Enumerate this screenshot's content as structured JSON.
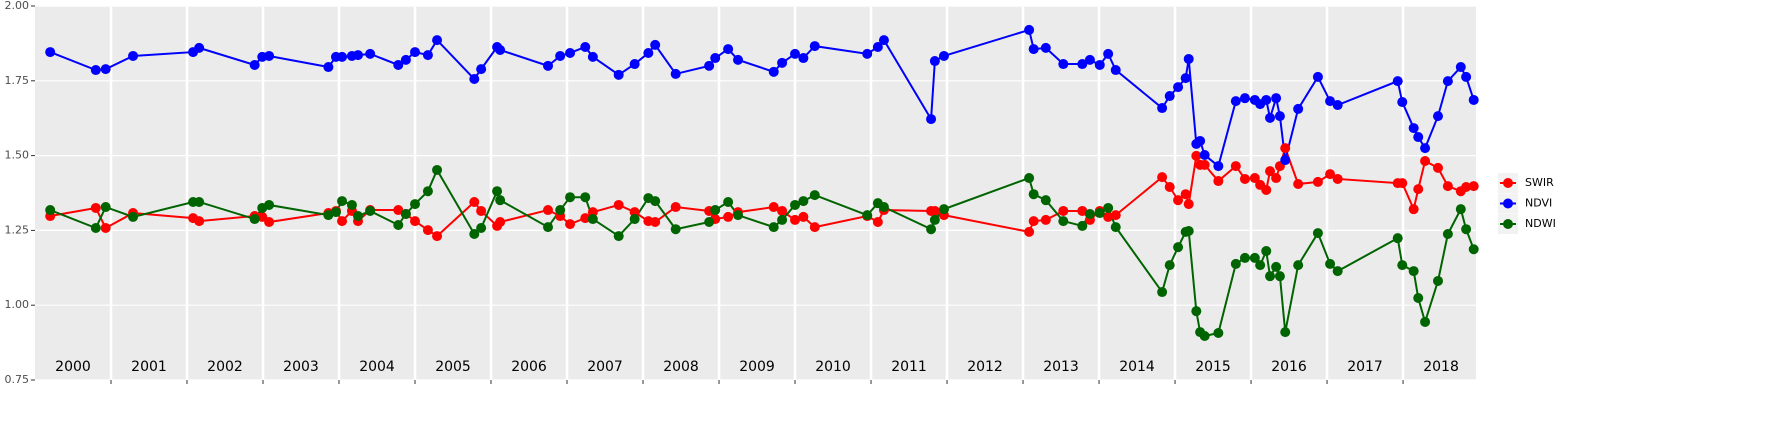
{
  "chart_data": {
    "type": "line",
    "x": [
      2000.2,
      2000.8,
      2000.93,
      2001.29,
      2002.08,
      2002.16,
      2002.89,
      2002.99,
      2003.08,
      2003.86,
      2003.96,
      2004.04,
      2004.17,
      2004.25,
      2004.41,
      2004.78,
      2004.88,
      2005.0,
      2005.17,
      2005.29,
      2005.78,
      2005.87,
      2006.08,
      2006.12,
      2006.75,
      2006.91,
      2007.04,
      2007.24,
      2007.34,
      2007.68,
      2007.89,
      2008.07,
      2008.16,
      2008.43,
      2008.87,
      2008.95,
      2009.12,
      2009.25,
      2009.72,
      2009.83,
      2010.0,
      2010.11,
      2010.26,
      2010.95,
      2011.09,
      2011.17,
      2011.79,
      2011.84,
      2011.96,
      2013.08,
      2013.14,
      2013.3,
      2013.53,
      2013.78,
      2013.88,
      2014.01,
      2014.12,
      2014.22,
      2014.83,
      2014.93,
      2015.04,
      2015.14,
      2015.18,
      2015.28,
      2015.33,
      2015.39,
      2015.57,
      2015.8,
      2015.92,
      2016.05,
      2016.12,
      2016.2,
      2016.25,
      2016.33,
      2016.38,
      2016.45,
      2016.62,
      2016.88,
      2017.04,
      2017.14,
      2017.93,
      2017.99,
      2018.14,
      2018.2,
      2018.29,
      2018.46,
      2018.59,
      2018.76,
      2018.83,
      2018.93
    ],
    "series": [
      {
        "name": "SWIR",
        "color": "#ff0000",
        "values": [
          1.298,
          1.325,
          1.258,
          1.308,
          1.291,
          1.281,
          1.298,
          1.295,
          1.278,
          1.308,
          1.315,
          1.281,
          1.315,
          1.281,
          1.318,
          1.318,
          1.305,
          1.281,
          1.251,
          1.231,
          1.345,
          1.315,
          1.265,
          1.278,
          1.318,
          1.298,
          1.271,
          1.291,
          1.311,
          1.335,
          1.311,
          1.281,
          1.278,
          1.328,
          1.315,
          1.288,
          1.295,
          1.311,
          1.328,
          1.315,
          1.285,
          1.295,
          1.261,
          1.298,
          1.278,
          1.318,
          1.315,
          1.315,
          1.301,
          1.245,
          1.281,
          1.285,
          1.315,
          1.315,
          1.285,
          1.315,
          1.295,
          1.301,
          1.428,
          1.395,
          1.351,
          1.371,
          1.338,
          1.499,
          1.469,
          1.469,
          1.415,
          1.465,
          1.422,
          1.425,
          1.402,
          1.385,
          1.448,
          1.425,
          1.465,
          1.525,
          1.405,
          1.412,
          1.438,
          1.422,
          1.408,
          1.408,
          1.321,
          1.388,
          1.482,
          1.459,
          1.398,
          1.381,
          1.395,
          1.398
        ]
      },
      {
        "name": "NDVI",
        "color": "#0000ff",
        "values": [
          1.846,
          1.786,
          1.789,
          1.833,
          1.846,
          1.86,
          1.803,
          1.83,
          1.833,
          1.796,
          1.83,
          1.83,
          1.833,
          1.836,
          1.84,
          1.803,
          1.82,
          1.846,
          1.836,
          1.886,
          1.756,
          1.789,
          1.863,
          1.853,
          1.8,
          1.833,
          1.843,
          1.863,
          1.83,
          1.77,
          1.806,
          1.843,
          1.87,
          1.773,
          1.8,
          1.826,
          1.856,
          1.82,
          1.78,
          1.81,
          1.84,
          1.826,
          1.866,
          1.84,
          1.863,
          1.886,
          1.622,
          1.816,
          1.833,
          1.92,
          1.856,
          1.86,
          1.806,
          1.806,
          1.82,
          1.803,
          1.84,
          1.786,
          1.659,
          1.699,
          1.729,
          1.759,
          1.823,
          1.539,
          1.549,
          1.502,
          1.465,
          1.682,
          1.692,
          1.686,
          1.672,
          1.686,
          1.626,
          1.692,
          1.632,
          1.485,
          1.656,
          1.763,
          1.682,
          1.669,
          1.749,
          1.679,
          1.592,
          1.562,
          1.525,
          1.632,
          1.749,
          1.796,
          1.763,
          1.686
        ]
      },
      {
        "name": "NDWI",
        "color": "#006400",
        "values": [
          1.318,
          1.258,
          1.328,
          1.295,
          1.345,
          1.345,
          1.288,
          1.325,
          1.335,
          1.301,
          1.311,
          1.348,
          1.335,
          1.298,
          1.315,
          1.268,
          1.305,
          1.338,
          1.381,
          1.452,
          1.238,
          1.258,
          1.381,
          1.351,
          1.261,
          1.318,
          1.361,
          1.361,
          1.288,
          1.231,
          1.288,
          1.358,
          1.348,
          1.254,
          1.278,
          1.318,
          1.345,
          1.301,
          1.261,
          1.285,
          1.335,
          1.348,
          1.368,
          1.301,
          1.341,
          1.328,
          1.254,
          1.285,
          1.321,
          1.425,
          1.371,
          1.351,
          1.281,
          1.265,
          1.305,
          1.308,
          1.325,
          1.261,
          1.044,
          1.134,
          1.194,
          1.245,
          1.248,
          0.98,
          0.91,
          0.897,
          0.907,
          1.138,
          1.158,
          1.158,
          1.134,
          1.181,
          1.097,
          1.128,
          1.097,
          0.91,
          1.134,
          1.241,
          1.138,
          1.114,
          1.224,
          1.134,
          1.114,
          1.024,
          0.944,
          1.081,
          1.238,
          1.321,
          1.254,
          1.187
        ]
      }
    ],
    "year_labels": [
      "2000",
      "2001",
      "2002",
      "2003",
      "2004",
      "2005",
      "2006",
      "2007",
      "2008",
      "2009",
      "2010",
      "2011",
      "2012",
      "2013",
      "2014",
      "2015",
      "2016",
      "2017",
      "2018"
    ],
    "xlim": [
      2000,
      2018.96
    ],
    "xgrid": [
      2001,
      2002,
      2003,
      2004,
      2005,
      2006,
      2007,
      2008,
      2009,
      2010,
      2011,
      2012,
      2013,
      2014,
      2015,
      2016,
      2017,
      2018
    ],
    "ylim": [
      0.75,
      2.0
    ],
    "yticks": [
      {
        "value": 0.75,
        "label": "0.75"
      },
      {
        "value": 1.0,
        "label": "1.00"
      },
      {
        "value": 1.25,
        "label": "1.25"
      },
      {
        "value": 1.5,
        "label": "1.50"
      },
      {
        "value": 1.75,
        "label": "1.75"
      },
      {
        "value": 2.0,
        "label": "2.00"
      }
    ],
    "grid": true,
    "legend": "right"
  }
}
